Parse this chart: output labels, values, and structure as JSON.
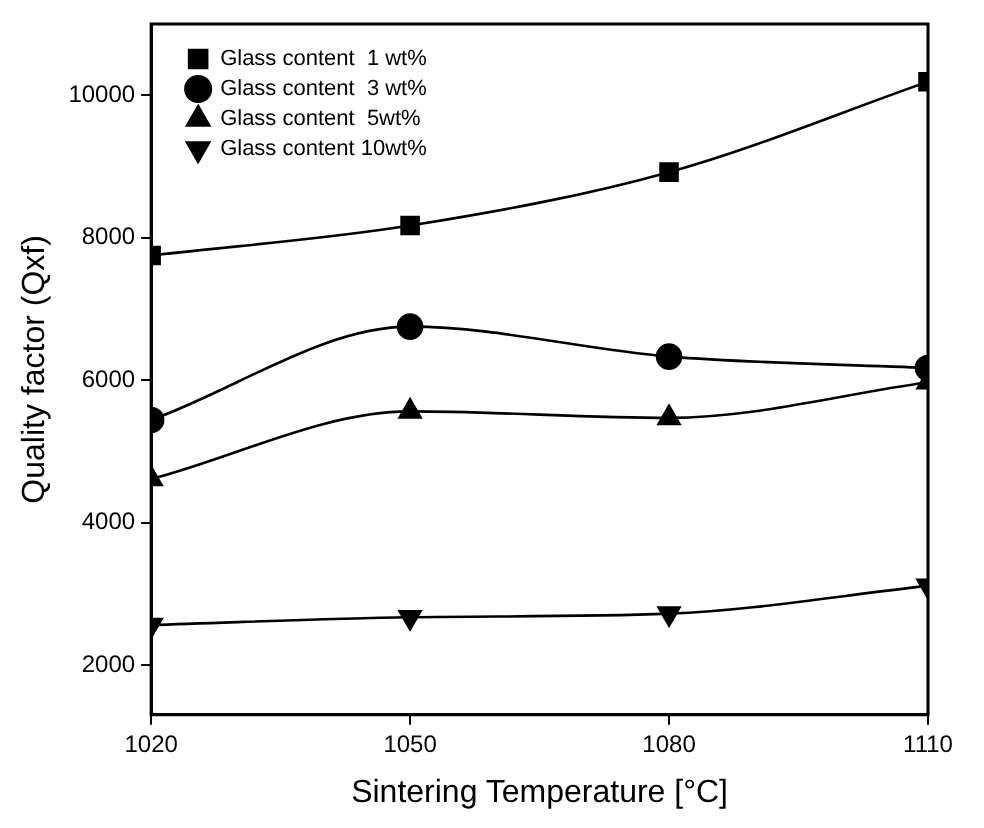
{
  "chart_data": {
    "type": "line",
    "xlabel": "Sintering Temperature [°C]",
    "ylabel": "Quality factor (Qxf)",
    "x": [
      1020,
      1050,
      1080,
      1110
    ],
    "xlim": [
      1020,
      1110
    ],
    "xticks": [
      1020,
      1050,
      1080,
      1110
    ],
    "ylim": [
      1300,
      11000
    ],
    "yticks": [
      2000,
      4000,
      6000,
      8000,
      10000
    ],
    "grid": false,
    "legend": "top left",
    "line_style": "solid",
    "series": [
      {
        "name": "Glass content  1 wt%",
        "color": "#000000",
        "marker": "square",
        "values": [
          7750,
          8170,
          8920,
          10190
        ]
      },
      {
        "name": "Glass content  3 wt%",
        "color": "#000000",
        "marker": "circle",
        "values": [
          5440,
          6750,
          6330,
          6170
        ]
      },
      {
        "name": "Glass content  5wt%",
        "color": "#000000",
        "marker": "triangle",
        "values": [
          4610,
          5560,
          5470,
          5970
        ]
      },
      {
        "name": "Glass content 10wt%",
        "color": "#000000",
        "marker": "triangle-down",
        "values": [
          2560,
          2670,
          2720,
          3110
        ]
      }
    ]
  }
}
